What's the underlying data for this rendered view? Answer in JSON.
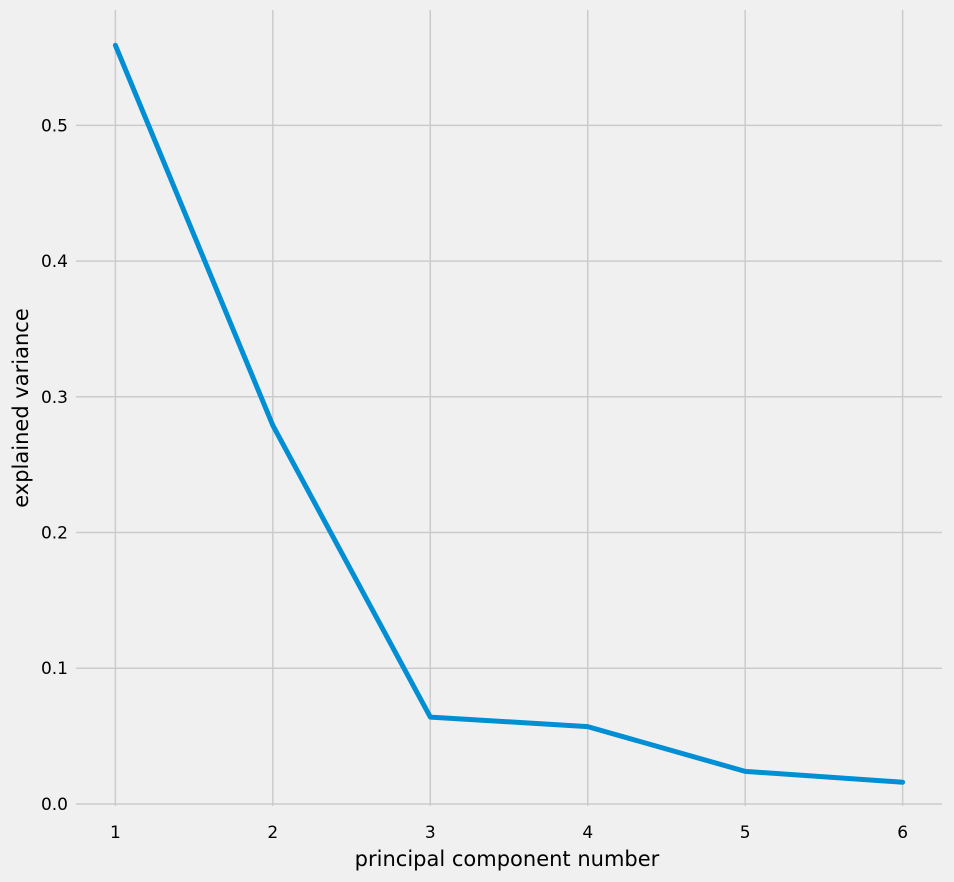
{
  "chart_data": {
    "type": "line",
    "title": "",
    "xlabel": "principal component number",
    "ylabel": "explained variance",
    "x": [
      1,
      2,
      3,
      4,
      5,
      6
    ],
    "series": [
      {
        "values": [
          0.559,
          0.279,
          0.064,
          0.057,
          0.024,
          0.016
        ]
      }
    ],
    "xticks": [
      1,
      2,
      3,
      4,
      5,
      6
    ],
    "yticks": [
      0.0,
      0.1,
      0.2,
      0.3,
      0.4,
      0.5
    ],
    "ytick_labels": [
      "0.0",
      "0.1",
      "0.2",
      "0.3",
      "0.4",
      "0.5"
    ],
    "xlim": [
      0.75,
      6.25
    ],
    "ylim": [
      -0.0015,
      0.585
    ],
    "grid": true,
    "colors": {
      "background": "#f0f0f0",
      "grid": "#cbcbcb",
      "series": "#008fd5"
    }
  }
}
